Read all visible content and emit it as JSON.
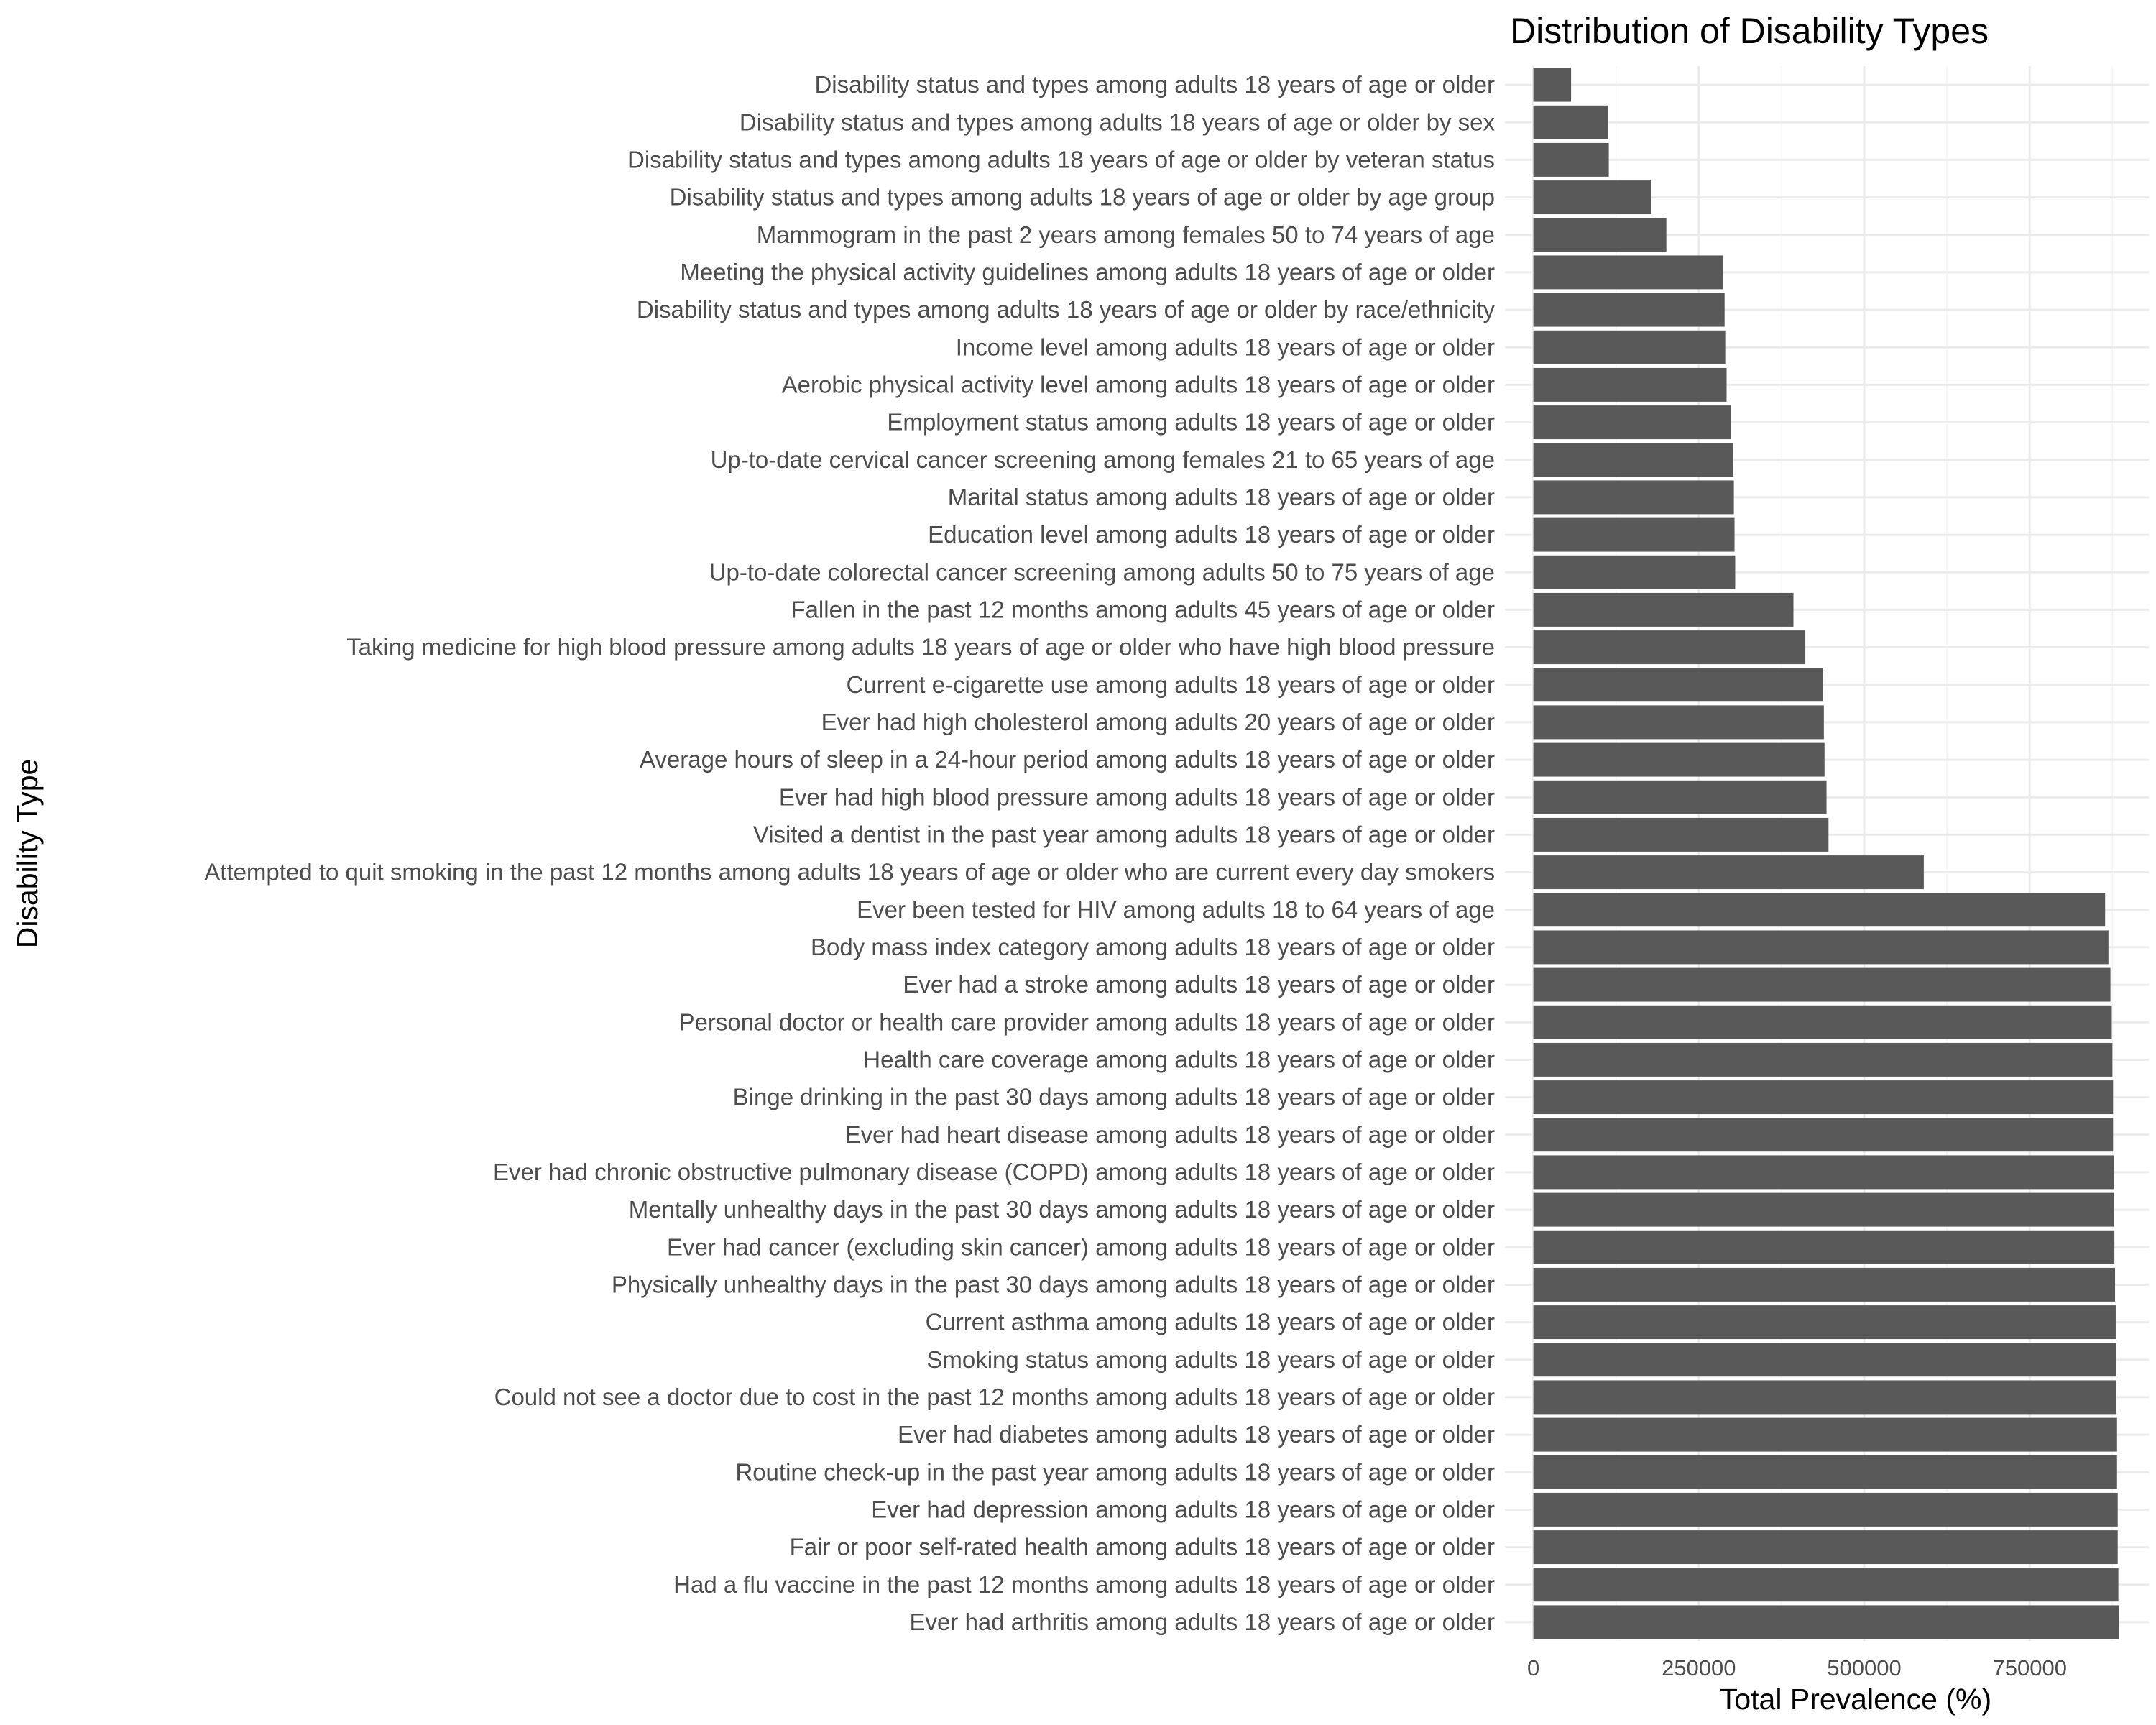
{
  "chart_data": {
    "type": "bar",
    "orientation": "horizontal",
    "title": "Distribution of Disability Types",
    "xlabel": "Total Prevalence (%)",
    "ylabel": "Disability Type",
    "xlim": [
      0,
      900000
    ],
    "xticks": [
      0,
      250000,
      500000,
      750000
    ],
    "xtick_labels": [
      "0",
      "250000",
      "500000",
      "750000"
    ],
    "grid": true,
    "legend": "none",
    "bar_color": "#595959",
    "categories": [
      "Disability status and types among adults 18 years of age or older",
      "Disability status and types among adults 18 years of age or older by sex",
      "Disability status and types among adults 18 years of age or older by veteran status",
      "Disability status and types among adults 18 years of age or older by age group",
      "Mammogram in the past 2 years among females 50 to 74 years of age",
      "Meeting the physical activity guidelines among adults 18 years of age or older",
      "Disability status and types among adults 18 years of age or older by race/ethnicity",
      "Income level among adults 18 years of age or older",
      "Aerobic physical activity level among adults 18 years of age or older",
      "Employment status among adults 18 years of age or older",
      "Up-to-date cervical cancer screening among females 21 to 65 years of age",
      "Marital status among adults 18 years of age or older",
      "Education level among adults 18 years of age or older",
      "Up-to-date colorectal cancer screening among adults 50 to 75 years of age",
      "Fallen in the past 12 months among adults 45 years of age or older",
      "Taking medicine for high blood pressure among adults 18 years of age or older who have high blood pressure",
      "Current e-cigarette use among adults 18 years of age or older",
      "Ever had high cholesterol among adults 20 years of age or older",
      "Average hours of sleep in a 24-hour period among adults 18 years of age or older",
      "Ever had high blood pressure among adults 18 years of age or older",
      "Visited a dentist in the past year among adults 18 years of age or older",
      "Attempted to quit smoking in the past 12 months among adults 18 years of age or older who are current every day smokers",
      "Ever been tested for HIV among adults 18 to 64 years of age",
      "Body mass index category among adults 18 years of age or older",
      "Ever had a stroke among adults 18 years of age or older",
      "Personal doctor or health care provider among adults 18 years of age or older",
      "Health care coverage among adults 18 years of age or older",
      "Binge drinking in the past 30 days among adults 18 years of age or older",
      "Ever had heart disease among adults 18 years of age or older",
      "Ever had chronic obstructive pulmonary disease (COPD) among adults 18 years of age or older",
      "Mentally unhealthy days in the past 30 days among adults 18 years of age or older",
      "Ever had cancer (excluding skin cancer) among adults 18 years of age or older",
      "Physically unhealthy days in the past 30 days among adults 18 years of age or older",
      "Current asthma among adults 18 years of age or older",
      "Smoking status among adults 18 years of age or older",
      "Could not see a doctor due to cost in the past 12 months among adults 18 years of age or older",
      "Ever had diabetes among adults 18 years of age or older",
      "Routine check-up in the past year among adults 18 years of age or older",
      "Ever had depression among adults 18 years of age or older",
      "Fair or poor self-rated health among adults 18 years of age or older",
      "Had a flu vaccine in the past 12 months among adults 18 years of age or older",
      "Ever had arthritis among adults 18 years of age or older"
    ],
    "values": [
      57000,
      113000,
      114000,
      178000,
      201000,
      287000,
      289000,
      290000,
      292000,
      298000,
      302000,
      303000,
      304000,
      305000,
      393000,
      411000,
      438000,
      439000,
      440000,
      443000,
      446000,
      590000,
      864000,
      869000,
      872000,
      874000,
      875000,
      876000,
      876000,
      877000,
      877000,
      878000,
      879000,
      880000,
      881000,
      881000,
      882000,
      882000,
      883000,
      883000,
      884000,
      885000
    ]
  }
}
